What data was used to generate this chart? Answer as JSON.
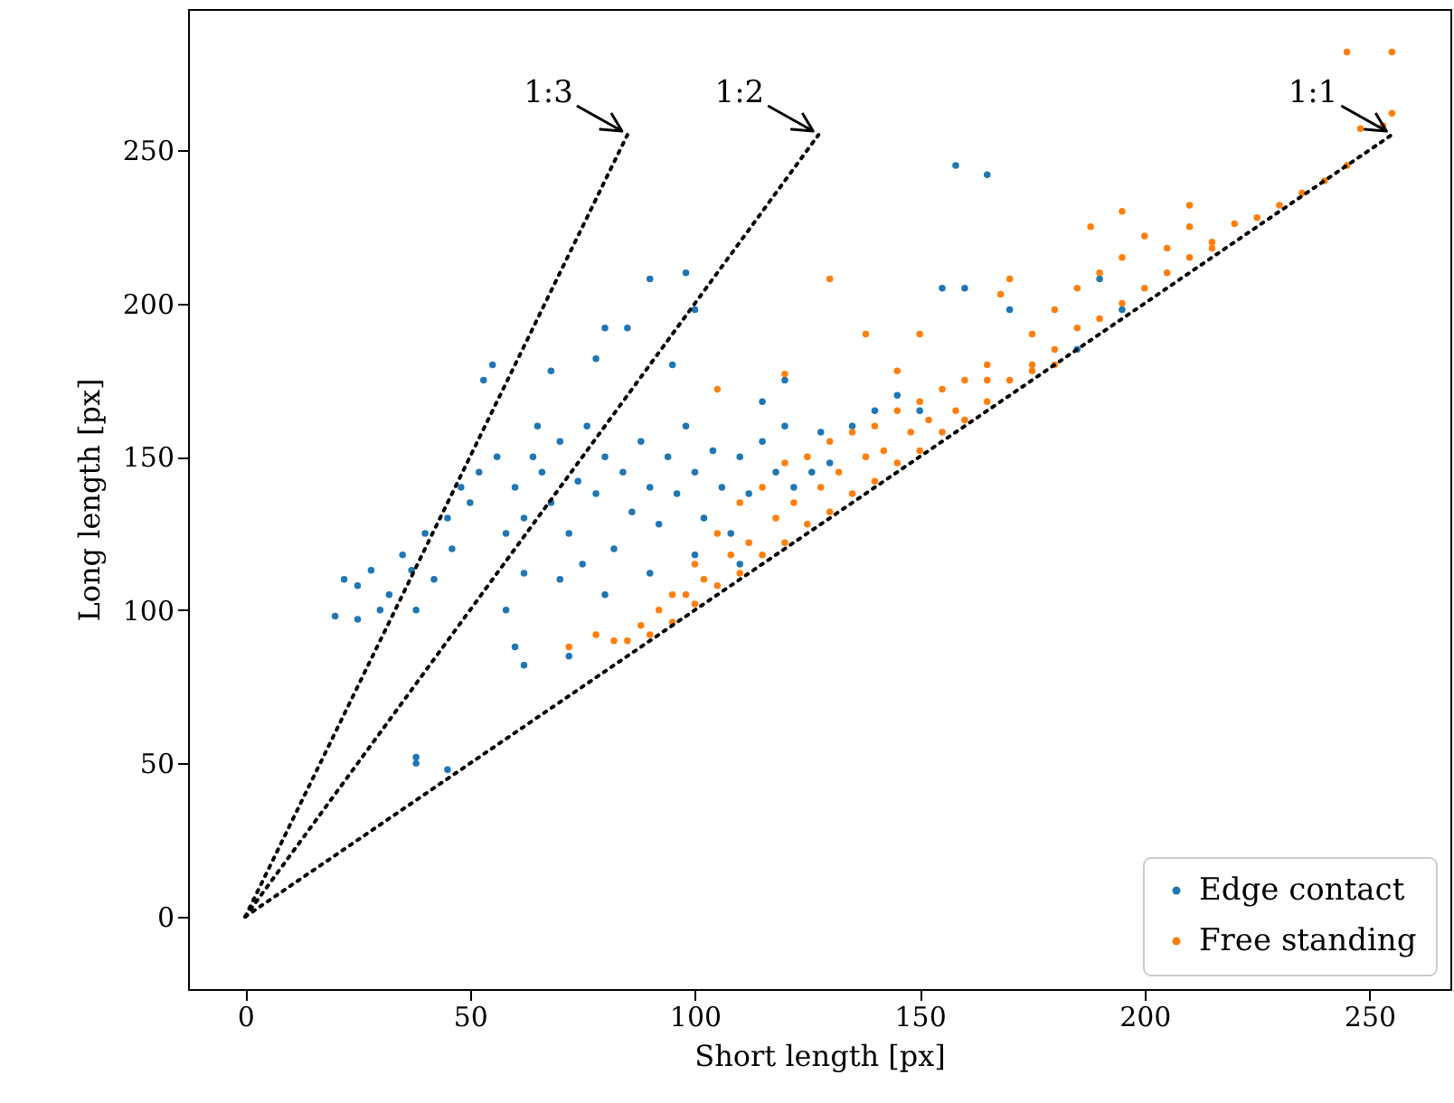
{
  "chart_data": {
    "type": "scatter",
    "xlabel": "Short length [px]",
    "ylabel": "Long length [px]",
    "xlim": [
      -12.7,
      268
    ],
    "ylim": [
      -23.6,
      296
    ],
    "xticks": [
      0,
      50,
      100,
      150,
      200,
      250
    ],
    "yticks": [
      0,
      50,
      100,
      150,
      200,
      250
    ],
    "grid": false,
    "legend": "bottom right",
    "marker": "circle",
    "annotations": [
      {
        "text": "1:3",
        "x": 85,
        "y": 255
      },
      {
        "text": "1:2",
        "x": 127.5,
        "y": 255
      },
      {
        "text": "1:1",
        "x": 255,
        "y": 255
      }
    ],
    "series": [
      {
        "name": "Edge contact",
        "color": "#1f77b4",
        "x": [
          20,
          22,
          25,
          25,
          28,
          30,
          32,
          35,
          37,
          38,
          40,
          42,
          45,
          46,
          48,
          50,
          52,
          53,
          55,
          56,
          58,
          60,
          62,
          64,
          65,
          66,
          68,
          70,
          72,
          74,
          76,
          78,
          80,
          82,
          84,
          86,
          88,
          90,
          92,
          94,
          96,
          98,
          100,
          102,
          104,
          106,
          108,
          110,
          112,
          115,
          118,
          120,
          122,
          126,
          128,
          130,
          135,
          140,
          145,
          150,
          62,
          70,
          80,
          90,
          58,
          75,
          100,
          110,
          38,
          38,
          45,
          60,
          62,
          72,
          68,
          78,
          85,
          90,
          98,
          95,
          100,
          158,
          165,
          155,
          160,
          170,
          190,
          195,
          185,
          115,
          120,
          80
        ],
        "values": [
          98,
          110,
          108,
          97,
          113,
          100,
          105,
          118,
          113,
          100,
          125,
          110,
          130,
          120,
          140,
          135,
          145,
          175,
          180,
          150,
          125,
          140,
          130,
          150,
          160,
          145,
          135,
          155,
          125,
          142,
          160,
          138,
          150,
          120,
          145,
          132,
          155,
          140,
          128,
          150,
          138,
          160,
          145,
          130,
          152,
          140,
          125,
          150,
          138,
          155,
          145,
          160,
          140,
          145,
          158,
          148,
          160,
          165,
          170,
          165,
          112,
          110,
          105,
          112,
          100,
          115,
          118,
          115,
          52,
          50,
          48,
          88,
          82,
          85,
          178,
          182,
          192,
          208,
          210,
          180,
          198,
          245,
          242,
          205,
          205,
          198,
          208,
          198,
          185,
          168,
          175,
          192
        ]
      },
      {
        "name": "Free standing",
        "color": "#ff7f0e",
        "x": [
          85,
          88,
          90,
          92,
          95,
          98,
          100,
          100,
          102,
          105,
          105,
          108,
          110,
          110,
          112,
          115,
          115,
          118,
          120,
          120,
          122,
          125,
          125,
          128,
          130,
          130,
          132,
          135,
          135,
          138,
          140,
          140,
          142,
          145,
          145,
          148,
          150,
          150,
          152,
          155,
          155,
          158,
          160,
          160,
          165,
          165,
          170,
          175,
          175,
          180,
          180,
          185,
          185,
          190,
          190,
          195,
          195,
          200,
          200,
          205,
          205,
          210,
          210,
          215,
          220,
          225,
          230,
          235,
          240,
          245,
          248,
          253,
          255,
          245,
          255,
          120,
          130,
          138,
          150,
          168,
          175,
          180,
          165,
          145,
          105,
          170,
          188,
          210,
          215,
          195,
          72,
          78,
          82,
          95
        ],
        "values": [
          90,
          95,
          92,
          100,
          96,
          105,
          102,
          115,
          110,
          108,
          125,
          118,
          112,
          135,
          122,
          118,
          140,
          130,
          122,
          148,
          135,
          128,
          150,
          140,
          132,
          155,
          145,
          138,
          158,
          150,
          142,
          160,
          152,
          148,
          165,
          158,
          152,
          168,
          162,
          158,
          172,
          165,
          162,
          175,
          168,
          180,
          175,
          180,
          190,
          185,
          198,
          192,
          205,
          195,
          210,
          200,
          215,
          205,
          222,
          210,
          218,
          215,
          225,
          220,
          226,
          228,
          232,
          236,
          240,
          245,
          257,
          258,
          262,
          282,
          282,
          177,
          208,
          190,
          190,
          203,
          178,
          180,
          175,
          178,
          172,
          208,
          225,
          232,
          218,
          230,
          88,
          92,
          90,
          105
        ]
      },
      {
        "type": "line",
        "color": "#000000",
        "line_style": "dotted",
        "marker": "none",
        "x": [
          0,
          255
        ],
        "values": [
          0,
          255
        ]
      },
      {
        "type": "line",
        "color": "#000000",
        "line_style": "dotted",
        "marker": "none",
        "x": [
          0,
          127.5
        ],
        "values": [
          0,
          255
        ]
      },
      {
        "type": "line",
        "color": "#000000",
        "line_style": "dotted",
        "marker": "none",
        "x": [
          0,
          85
        ],
        "values": [
          0,
          255
        ]
      }
    ]
  }
}
